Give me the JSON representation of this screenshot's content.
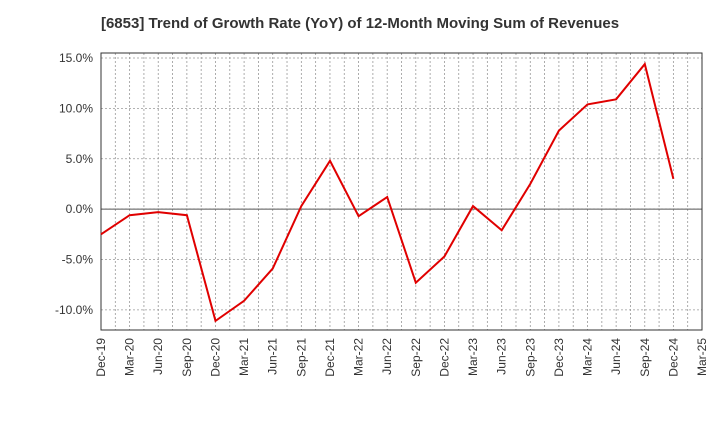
{
  "chart_data": {
    "type": "line",
    "title": "[6853]  Trend of Growth Rate (YoY) of 12-Month Moving Sum of Revenues",
    "xlabel": "",
    "ylabel": "",
    "categories": [
      "Dec-19",
      "Mar-20",
      "Jun-20",
      "Sep-20",
      "Dec-20",
      "Mar-21",
      "Jun-21",
      "Sep-21",
      "Dec-21",
      "Mar-22",
      "Jun-22",
      "Sep-22",
      "Dec-22",
      "Mar-23",
      "Jun-23",
      "Sep-23",
      "Dec-23",
      "Mar-24",
      "Jun-24",
      "Sep-24",
      "Dec-24",
      "Mar-25"
    ],
    "ylim": [
      -12,
      15.5
    ],
    "y_ticks": [
      15,
      10,
      5,
      0,
      -5,
      -10
    ],
    "y_tick_labels": [
      "15.0%",
      "10.0%",
      "5.0%",
      "0.0%",
      "-5.0%",
      "-10.0%"
    ],
    "grid": true,
    "series": [
      {
        "color": "#e00000",
        "values": [
          -2.5,
          -0.6,
          -0.3,
          -0.6,
          -11.1,
          -9.1,
          -5.9,
          0.3,
          4.8,
          -0.7,
          1.2,
          -7.3,
          -4.7,
          0.3,
          -2.1,
          2.5,
          7.8,
          10.4,
          10.9,
          14.4,
          3.0,
          null
        ]
      }
    ]
  }
}
